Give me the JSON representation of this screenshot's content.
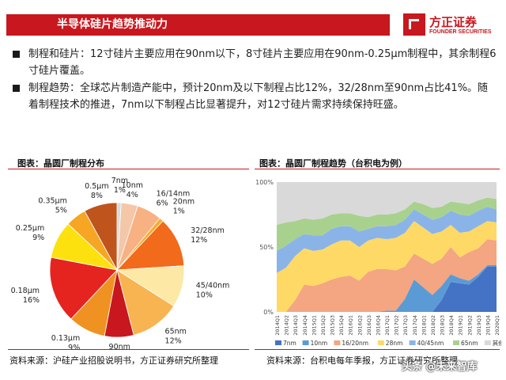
{
  "header": {
    "title": "半导体硅片趋势推动力"
  },
  "logo": {
    "name_cn": "方正证券",
    "name_en": "FOUNDER SECURITIES"
  },
  "bullets": [
    {
      "text": "制程和硅片：12寸硅片主要应用在90nm以下，8寸硅片主要应用在90nm-0.25μm制程中，其余制程6寸硅片覆盖。"
    },
    {
      "text": "制程趋势：全球芯片制造产能中，预计20nm及以下制程占比12%，32/28nm至90nm占比41%。随着制程技术的推进，7nm以下制程占比显著提升，对12寸硅片需求持续保持旺盛。"
    }
  ],
  "left_figure": {
    "title": "图表：晶圆厂制程分布",
    "source": "资料来源：沪硅产业招股说明书，方正证券研究所整理"
  },
  "right_figure": {
    "title": "图表：晶圆厂制程趋势（台积电为例）",
    "source": "资料来源：台积电每年季报，方正证券研究所整理"
  },
  "watermark": "头条 @未来智库",
  "colors": {
    "brand": "#c8171e"
  },
  "chart_data": [
    {
      "type": "pie",
      "title": "图表：晶圆厂制程分布",
      "slices": [
        {
          "name": "7nm",
          "value": 1,
          "label": "1%",
          "color": "#d9d9d9"
        },
        {
          "name": "10nm",
          "value": 4,
          "label": "4%",
          "color": "#f4c7a8"
        },
        {
          "name": "16/14nm",
          "value": 6,
          "label": "6%",
          "color": "#f8b183"
        },
        {
          "name": "20nm",
          "value": 1,
          "label": "1%",
          "color": "#f6ae2d"
        },
        {
          "name": "32/28nm",
          "value": 12,
          "label": "12%",
          "color": "#f26a1b"
        },
        {
          "name": "45/40nm",
          "value": 10,
          "label": "10%",
          "color": "#fde8a6"
        },
        {
          "name": "65nm",
          "value": 12,
          "label": "12%",
          "color": "#f7b450"
        },
        {
          "name": "90nm",
          "value": 7,
          "label": "7%",
          "color": "#c8171e"
        },
        {
          "name": "0.13μm",
          "value": 9,
          "label": "9%",
          "color": "#f09221"
        },
        {
          "name": "0.18μm",
          "value": 16,
          "label": "16%",
          "color": "#e52420"
        },
        {
          "name": "0.25μm",
          "value": 9,
          "label": "9%",
          "color": "#fde10e"
        },
        {
          "name": "0.35μm",
          "value": 5,
          "label": "5%",
          "color": "#f6a623"
        },
        {
          "name": "0.5μm",
          "value": 8,
          "label": "8%",
          "color": "#c0541d"
        }
      ]
    },
    {
      "type": "area",
      "title": "图表：晶圆厂制程趋势（台积电为例）",
      "stacked": true,
      "y_ticks": [
        "0%",
        "50%",
        "100%"
      ],
      "ylim": [
        0,
        100
      ],
      "categories": [
        "2014Q1",
        "2014Q2",
        "2014Q3",
        "2014Q4",
        "2015Q1",
        "2015Q2",
        "2015Q3",
        "2015Q4",
        "2016Q1",
        "2016Q2",
        "2016Q3",
        "2016Q4",
        "2017Q1",
        "2017Q2",
        "2017Q3",
        "2017Q4",
        "2018Q1",
        "2018Q2",
        "2018Q3",
        "2018Q4",
        "2019Q1",
        "2019Q2",
        "2019Q3",
        "2019Q4",
        "2020Q1"
      ],
      "series": [
        {
          "name": "7nm",
          "color": "#4472c4",
          "values": [
            0,
            0,
            0,
            0,
            0,
            0,
            0,
            0,
            0,
            0,
            0,
            0,
            0,
            0,
            0,
            0,
            0,
            0,
            9,
            23,
            22,
            21,
            27,
            35,
            35
          ]
        },
        {
          "name": "10nm",
          "color": "#5b9bd5",
          "values": [
            0,
            0,
            0,
            0,
            0,
            0,
            0,
            0,
            0,
            0,
            0,
            0,
            1,
            1,
            10,
            25,
            19,
            13,
            11,
            6,
            4,
            3,
            2,
            1,
            1
          ]
        },
        {
          "name": "16/20nm",
          "color": "#f4a582",
          "values": [
            0,
            0,
            9,
            21,
            20,
            22,
            25,
            27,
            28,
            24,
            31,
            33,
            32,
            31,
            25,
            20,
            22,
            24,
            21,
            21,
            16,
            22,
            20,
            20,
            19
          ]
        },
        {
          "name": "28nm",
          "color": "#ffd966",
          "values": [
            30,
            34,
            34,
            28,
            27,
            26,
            27,
            28,
            27,
            26,
            24,
            24,
            23,
            25,
            26,
            25,
            24,
            23,
            21,
            17,
            19,
            16,
            17,
            14,
            14
          ]
        },
        {
          "name": "40/45nm",
          "color": "#8ab4e8",
          "values": [
            17,
            17,
            13,
            11,
            12,
            11,
            12,
            11,
            11,
            12,
            9,
            9,
            10,
            10,
            10,
            9,
            10,
            11,
            11,
            11,
            14,
            12,
            12,
            11,
            10
          ]
        },
        {
          "name": "65nm",
          "color": "#a9d18e",
          "values": [
            20,
            18,
            14,
            12,
            12,
            13,
            11,
            10,
            10,
            12,
            9,
            9,
            9,
            9,
            8,
            6,
            8,
            9,
            8,
            7,
            9,
            9,
            8,
            7,
            8
          ]
        },
        {
          "name": "其他",
          "color": "#d9d9d9",
          "values": [
            33,
            31,
            30,
            28,
            29,
            28,
            25,
            24,
            24,
            26,
            27,
            25,
            25,
            24,
            21,
            15,
            17,
            20,
            19,
            15,
            16,
            17,
            14,
            12,
            13
          ]
        }
      ]
    }
  ]
}
